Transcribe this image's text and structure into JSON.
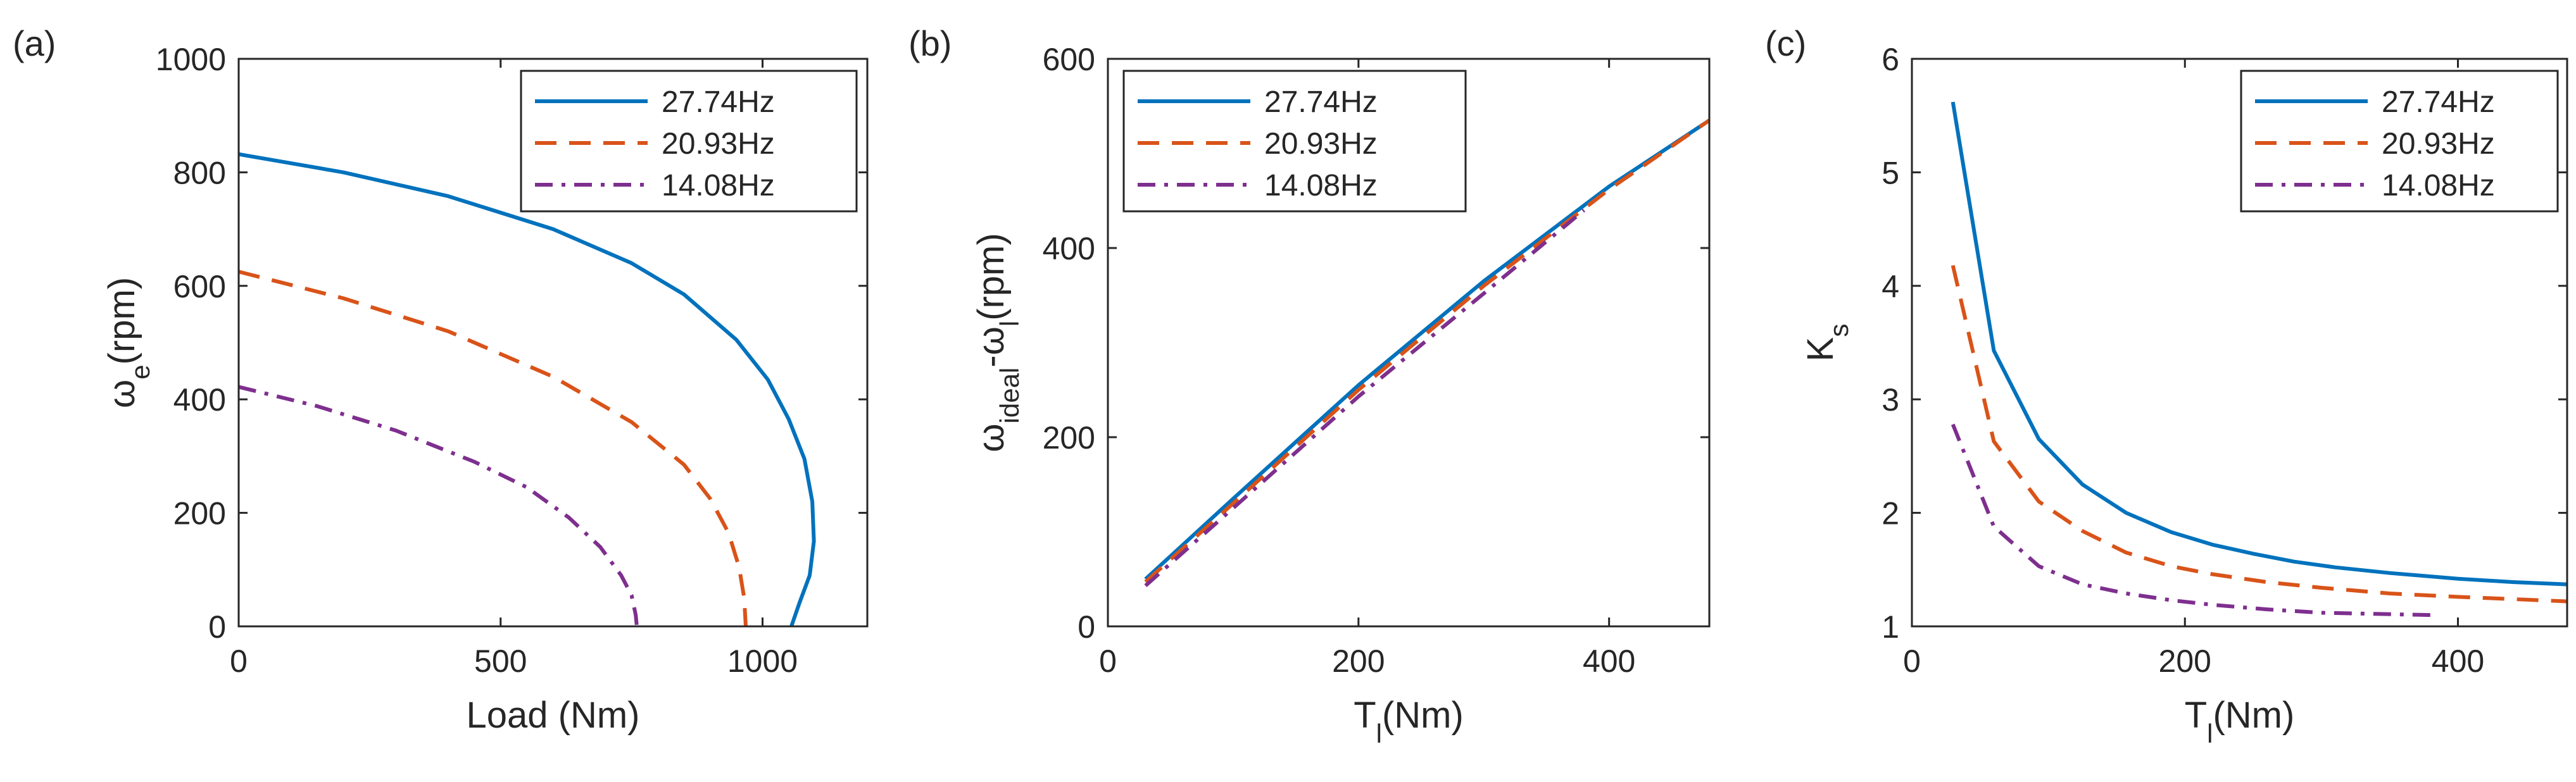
{
  "chart_data": [
    {
      "panel_label": "(a)",
      "type": "line",
      "xlabel": "Load (Nm)",
      "ylabel": {
        "base": "ω",
        "sub": "e",
        "suffix": "(rpm)"
      },
      "xlim": [
        0,
        1200
      ],
      "ylim": [
        0,
        1000
      ],
      "xticks": [
        0,
        500,
        1000
      ],
      "yticks": [
        0,
        200,
        400,
        600,
        800,
        1000
      ],
      "legend_position": "top-right",
      "series": [
        {
          "name": "27.74Hz",
          "color": "#0072BD",
          "dash": "solid",
          "x": [
            0,
            200,
            400,
            600,
            750,
            850,
            950,
            1010,
            1050,
            1080,
            1095,
            1098,
            1090,
            1070,
            1055
          ],
          "y": [
            832,
            800,
            758,
            700,
            640,
            585,
            505,
            435,
            365,
            295,
            220,
            150,
            90,
            40,
            0
          ]
        },
        {
          "name": "20.93Hz",
          "color": "#D95319",
          "dash": "dashed",
          "x": [
            0,
            200,
            400,
            600,
            750,
            850,
            900,
            935,
            955,
            965,
            968
          ],
          "y": [
            625,
            578,
            520,
            440,
            360,
            285,
            225,
            165,
            105,
            50,
            0
          ]
        },
        {
          "name": "14.08Hz",
          "color": "#7E2F8E",
          "dash": "dashdot",
          "x": [
            0,
            150,
            300,
            450,
            550,
            630,
            690,
            730,
            750,
            758,
            760
          ],
          "y": [
            422,
            388,
            345,
            290,
            245,
            192,
            140,
            90,
            55,
            20,
            0
          ]
        }
      ]
    },
    {
      "panel_label": "(b)",
      "type": "line",
      "xlabel": {
        "base": "T",
        "sub": "l",
        "suffix": "(Nm)"
      },
      "ylabel": {
        "base": "ω",
        "sub": "ideal",
        "mid": "-ω",
        "sub2": "l",
        "suffix": "(rpm)"
      },
      "xlim": [
        0,
        480
      ],
      "ylim": [
        0,
        600
      ],
      "xticks": [
        0,
        200,
        400
      ],
      "yticks": [
        0,
        200,
        400,
        600
      ],
      "legend_position": "top-left",
      "series": [
        {
          "name": "27.74Hz",
          "color": "#0072BD",
          "dash": "solid",
          "x": [
            30,
            100,
            200,
            300,
            400,
            480
          ],
          "y": [
            50,
            135,
            255,
            365,
            465,
            535
          ]
        },
        {
          "name": "20.93Hz",
          "color": "#D95319",
          "dash": "dashed",
          "x": [
            30,
            100,
            200,
            300,
            400,
            480
          ],
          "y": [
            47,
            130,
            250,
            360,
            462,
            535
          ]
        },
        {
          "name": "14.08Hz",
          "color": "#7E2F8E",
          "dash": "dashdot",
          "x": [
            30,
            100,
            200,
            300,
            380
          ],
          "y": [
            43,
            125,
            243,
            352,
            440
          ]
        }
      ]
    },
    {
      "panel_label": "(c)",
      "type": "line",
      "xlabel": {
        "base": "T",
        "sub": "l",
        "suffix": "(Nm)"
      },
      "ylabel": {
        "base": "K",
        "sub": "s",
        "suffix": ""
      },
      "xlim": [
        0,
        480
      ],
      "ylim": [
        1,
        6
      ],
      "xticks": [
        0,
        200,
        400
      ],
      "yticks": [
        1,
        2,
        3,
        4,
        5,
        6
      ],
      "legend_position": "top-right",
      "series": [
        {
          "name": "27.74Hz",
          "color": "#0072BD",
          "dash": "solid",
          "x": [
            30,
            60,
            93,
            125,
            157,
            190,
            220,
            250,
            280,
            310,
            350,
            400,
            440,
            480
          ],
          "y": [
            5.62,
            3.43,
            2.65,
            2.25,
            2.0,
            1.83,
            1.72,
            1.64,
            1.57,
            1.52,
            1.47,
            1.42,
            1.39,
            1.37
          ]
        },
        {
          "name": "20.93Hz",
          "color": "#D95319",
          "dash": "dashed",
          "x": [
            30,
            60,
            93,
            125,
            157,
            190,
            220,
            260,
            300,
            350,
            400,
            440,
            480
          ],
          "y": [
            4.18,
            2.63,
            2.1,
            1.84,
            1.65,
            1.53,
            1.46,
            1.39,
            1.34,
            1.29,
            1.26,
            1.24,
            1.22
          ]
        },
        {
          "name": "14.08Hz",
          "color": "#7E2F8E",
          "dash": "dashdot",
          "x": [
            30,
            60,
            93,
            125,
            157,
            190,
            220,
            260,
            300,
            340,
            380
          ],
          "y": [
            2.78,
            1.88,
            1.53,
            1.37,
            1.29,
            1.23,
            1.19,
            1.15,
            1.12,
            1.11,
            1.1
          ]
        }
      ]
    }
  ]
}
